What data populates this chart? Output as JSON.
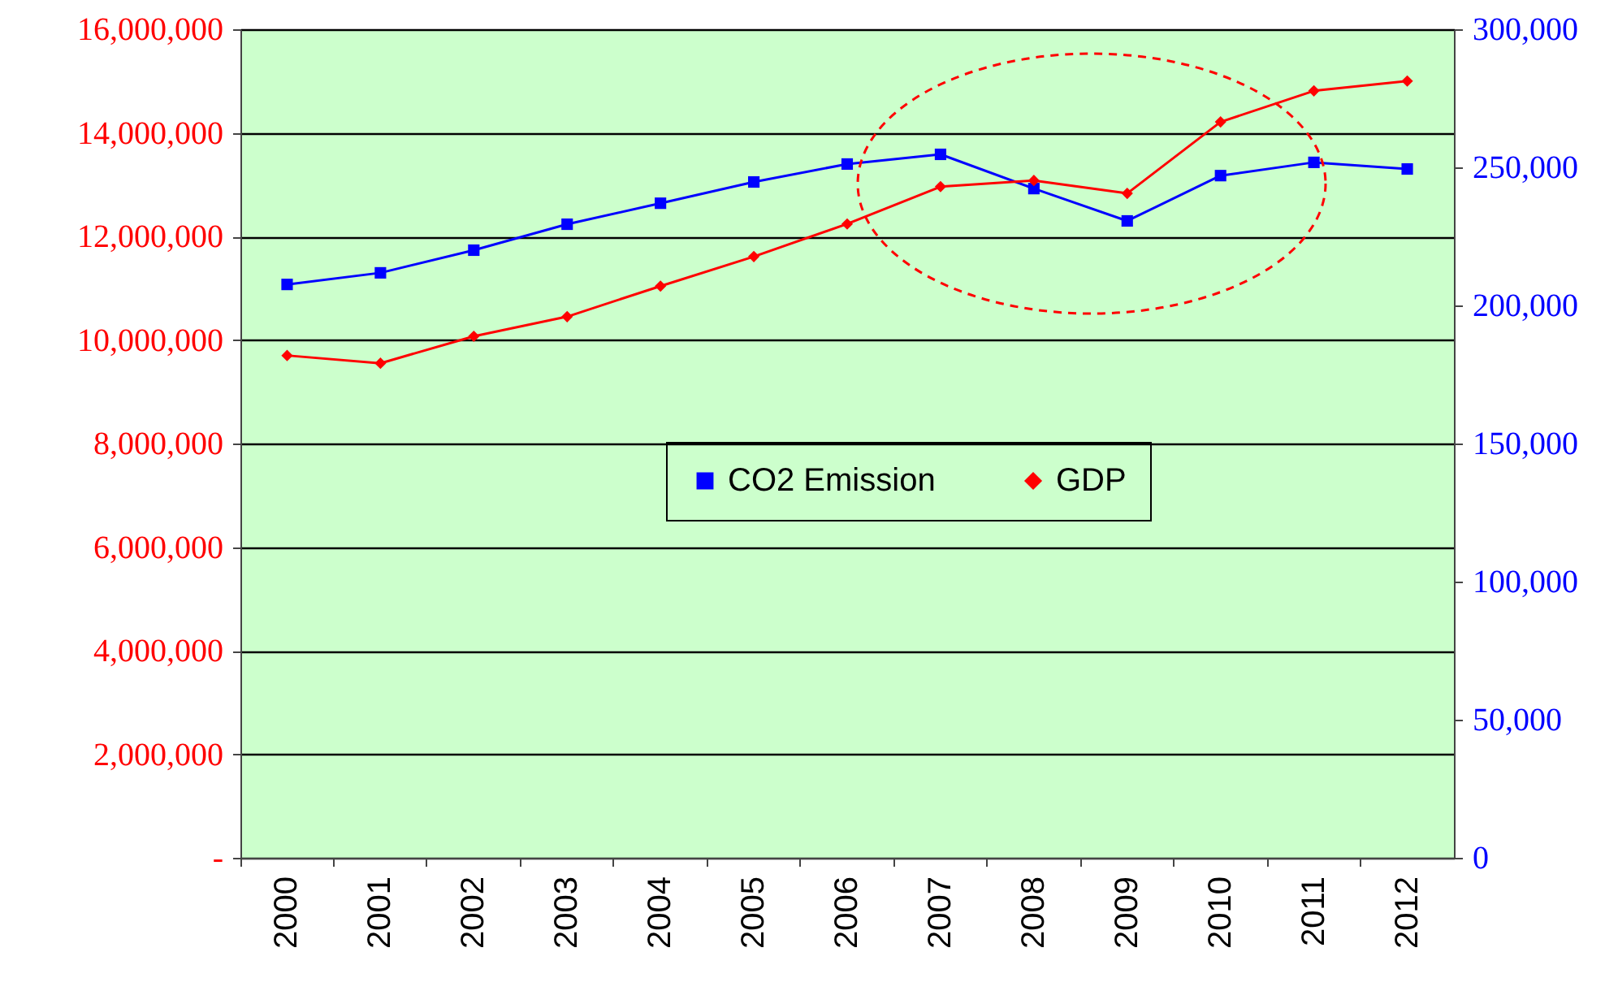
{
  "chart_data": {
    "type": "line",
    "categories": [
      "2000",
      "2001",
      "2002",
      "2003",
      "2004",
      "2005",
      "2006",
      "2007",
      "2008",
      "2009",
      "2010",
      "2011",
      "2012"
    ],
    "series": [
      {
        "name": "CO2 Emission",
        "color": "#0000ff",
        "marker": "square",
        "axis": "y2",
        "values": [
          207600,
          211800,
          220000,
          229400,
          237000,
          244700,
          251200,
          254700,
          242300,
          230600,
          247000,
          251800,
          249400
        ]
      },
      {
        "name": "GDP",
        "color": "#ff0000",
        "marker": "diamond",
        "values": [
          9700000,
          9550000,
          10070000,
          10450000,
          11040000,
          11610000,
          12240000,
          12960000,
          13080000,
          12830000,
          14210000,
          14810000,
          15000000
        ]
      }
    ],
    "ylim": [
      0,
      16000000
    ],
    "yticks": [
      {
        "value": 0,
        "label": "-"
      },
      {
        "value": 2000000,
        "label": "2,000,000"
      },
      {
        "value": 4000000,
        "label": "4,000,000"
      },
      {
        "value": 6000000,
        "label": "6,000,000"
      },
      {
        "value": 8000000,
        "label": "8,000,000"
      },
      {
        "value": 10000000,
        "label": "10,000,000"
      },
      {
        "value": 12000000,
        "label": "12,000,000"
      },
      {
        "value": 14000000,
        "label": "14,000,000"
      },
      {
        "value": 16000000,
        "label": "16,000,000"
      }
    ],
    "y2lim": [
      0,
      300000
    ],
    "y2ticks": [
      0,
      {
        "value": 50000,
        "label": "50,000"
      },
      {
        "value": 100000,
        "label": "100,000"
      },
      {
        "value": 150000,
        "label": "150,000"
      },
      {
        "value": 200000,
        "label": "200,000"
      },
      {
        "value": 250000,
        "label": "250,000"
      },
      {
        "value": 300000,
        "label": "300,000"
      }
    ],
    "grid": "y",
    "legend": "center"
  }
}
